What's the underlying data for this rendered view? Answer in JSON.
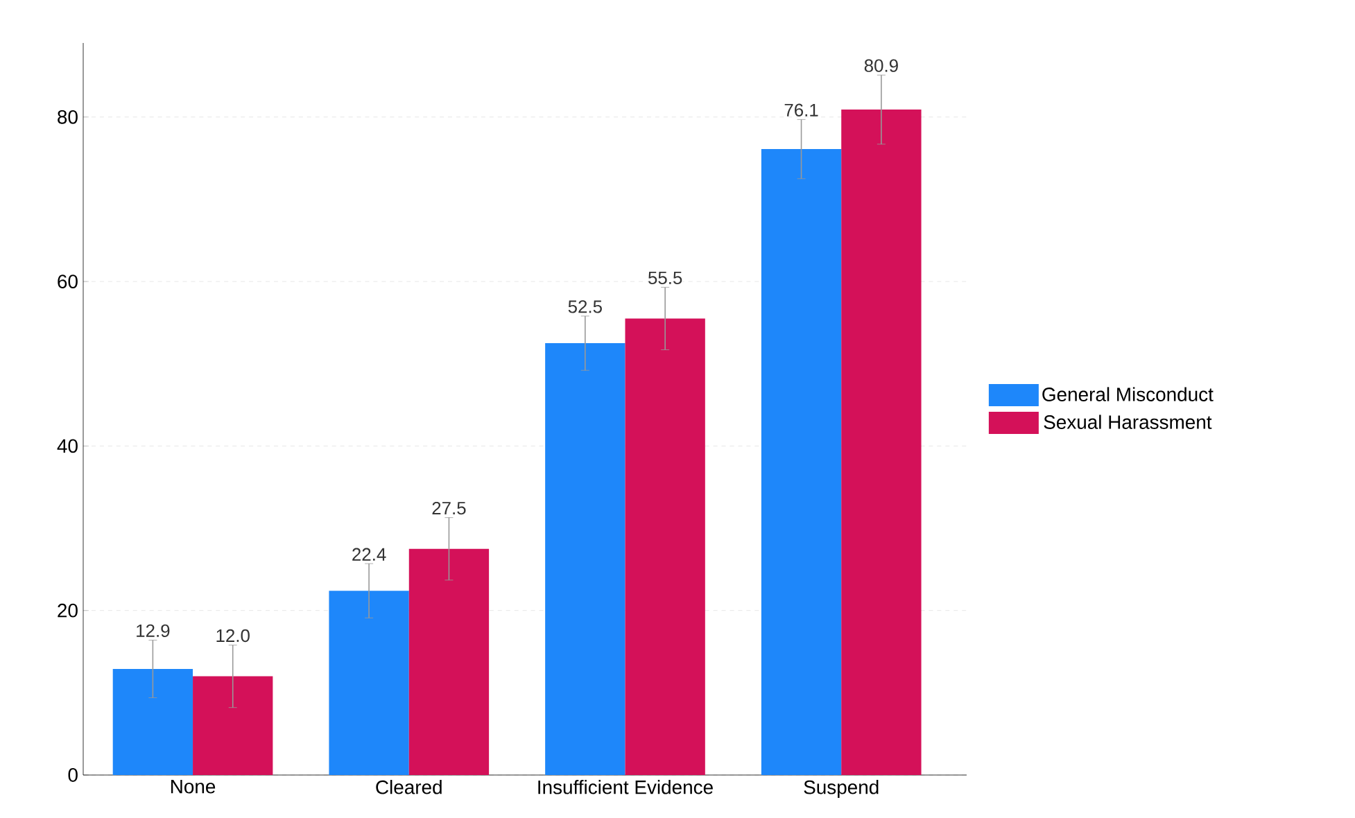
{
  "chart_data": {
    "type": "bar",
    "categories": [
      "None",
      "Cleared",
      "Insufficient Evidence",
      "Suspend"
    ],
    "series": [
      {
        "name": "General Misconduct",
        "color": "#1e87fa",
        "values": [
          12.9,
          22.4,
          52.5,
          76.1
        ],
        "errors": [
          3.5,
          3.3,
          3.3,
          3.6
        ],
        "value_labels": [
          "12.9",
          "22.4",
          "52.5",
          "76.1"
        ]
      },
      {
        "name": "Sexual Harassment",
        "color": "#d41159",
        "values": [
          12.0,
          27.5,
          55.5,
          80.9
        ],
        "errors": [
          3.8,
          3.8,
          3.8,
          4.2
        ],
        "value_labels": [
          "12.0",
          "27.5",
          "55.5",
          "80.9"
        ]
      }
    ],
    "ylim": [
      0,
      89
    ],
    "yticks": [
      0,
      20,
      40,
      60,
      80
    ],
    "grid": "y",
    "legend": "right"
  }
}
